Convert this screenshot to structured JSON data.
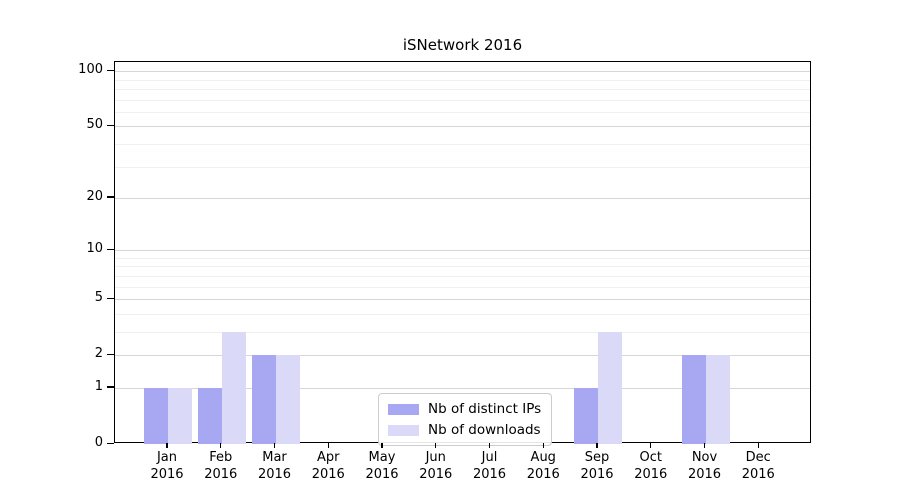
{
  "chart_data": {
    "type": "bar",
    "title": "iSNetwork 2016",
    "xlabel": "",
    "ylabel": "",
    "year_label": "2016",
    "categories": [
      "Jan",
      "Feb",
      "Mar",
      "Apr",
      "May",
      "Jun",
      "Jul",
      "Aug",
      "Sep",
      "Oct",
      "Nov",
      "Dec"
    ],
    "series": [
      {
        "name": "Nb of distinct IPs",
        "color": "#a8a8f2",
        "values": [
          1,
          1,
          2,
          0,
          0,
          0,
          0,
          0,
          1,
          0,
          2,
          0
        ]
      },
      {
        "name": "Nb of downloads",
        "color": "#dadaf8",
        "values": [
          1,
          3,
          2,
          0,
          0,
          0,
          0,
          0,
          3,
          0,
          2,
          0
        ]
      }
    ],
    "yscale": "log1p",
    "ylim": [
      0,
      112
    ],
    "y_major_ticks": [
      0,
      1,
      2,
      5,
      10,
      20,
      50,
      100
    ],
    "y_minor_ticks": [
      3,
      4,
      6,
      7,
      8,
      9,
      30,
      40,
      60,
      70,
      80,
      90
    ],
    "grid": "horizontal major+minor",
    "legend_position": "lower center inside plot",
    "colors": {
      "major_grid": "#d6d6d6",
      "minor_grid": "#f0f0f0",
      "spine": "#000000",
      "background": "#ffffff"
    }
  }
}
